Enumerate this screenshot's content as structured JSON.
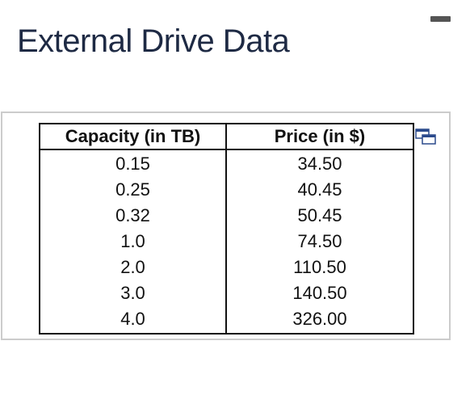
{
  "page": {
    "title": "External Drive Data"
  },
  "table": {
    "headers": [
      "Capacity (in TB)",
      "Price (in $)"
    ],
    "rows": [
      [
        "0.15",
        "34.50"
      ],
      [
        "0.25",
        "40.45"
      ],
      [
        "0.32",
        "50.45"
      ],
      [
        "1.0",
        "74.50"
      ],
      [
        "2.0",
        "110.50"
      ],
      [
        "3.0",
        "140.50"
      ],
      [
        "4.0",
        "326.00"
      ]
    ]
  },
  "icons": {
    "popout": "popout-window-icon",
    "minimize": "minimize-icon"
  },
  "colors": {
    "title": "#1e2a44",
    "table_border": "#111111",
    "panel_border": "#cccccc",
    "icon_accent": "#2b4a8c"
  }
}
